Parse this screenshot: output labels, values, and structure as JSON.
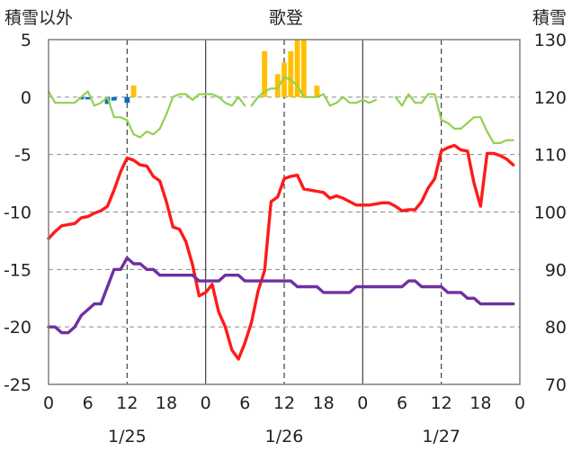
{
  "chart_data": {
    "type": "line",
    "title": "歌登",
    "y_left_label": "積雪以外",
    "y_right_label": "積雪",
    "y_left_ticks": [
      "5",
      "0",
      "-5",
      "-10",
      "-15",
      "-20",
      "-25"
    ],
    "y_right_ticks": [
      "130",
      "120",
      "110",
      "100",
      "90",
      "80",
      "70"
    ],
    "y_left_range": [
      -25,
      5
    ],
    "y_right_range": [
      70,
      130
    ],
    "x_hour_ticks": [
      "0",
      "6",
      "12",
      "18",
      "0",
      "6",
      "12",
      "18",
      "0",
      "6",
      "12",
      "18",
      "0"
    ],
    "x_date_labels": [
      "1/25",
      "1/26",
      "1/27"
    ],
    "x_range_hours": [
      0,
      72
    ],
    "grid": true,
    "colors": {
      "red": "#ff1a1a",
      "purple": "#7030a0",
      "green": "#92d050",
      "yellow": "#ffc000",
      "blue": "#0070c0"
    },
    "series": [
      {
        "color": "red",
        "axis": "left",
        "x": [
          0,
          1,
          2,
          3,
          4,
          5,
          6,
          7,
          8,
          9,
          10,
          11,
          12,
          13,
          14,
          15,
          16,
          17,
          18,
          19,
          20,
          21,
          22,
          23,
          24,
          25,
          26,
          27,
          28,
          29,
          30,
          31,
          32,
          33,
          34,
          35,
          36,
          37,
          38,
          39,
          40,
          41,
          42,
          43,
          44,
          45,
          46,
          47,
          48,
          49,
          50,
          51,
          52,
          53,
          54,
          55,
          56,
          57,
          58,
          59,
          60,
          61,
          62,
          63,
          64,
          65,
          66,
          67,
          68,
          69,
          70,
          71
        ],
        "values": [
          -12.3,
          -11.7,
          -11.2,
          -11.1,
          -11.0,
          -10.5,
          -10.4,
          -10.1,
          -9.9,
          -9.5,
          -8.1,
          -6.5,
          -5.3,
          -5.5,
          -5.9,
          -6.0,
          -6.9,
          -7.3,
          -9.1,
          -11.3,
          -11.5,
          -12.6,
          -14.6,
          -17.3,
          -17.0,
          -16.3,
          -18.7,
          -20.0,
          -22.0,
          -22.8,
          -21.4,
          -19.6,
          -16.9,
          -15.1,
          -9.1,
          -8.7,
          -7.1,
          -6.9,
          -6.8,
          -8.0,
          -8.1,
          -8.2,
          -8.3,
          -8.8,
          -8.6,
          -8.8,
          -9.1,
          -9.4,
          -9.4,
          -9.4,
          -9.3,
          -9.2,
          -9.2,
          -9.5,
          -9.9,
          -9.8,
          -9.8,
          -9.1,
          -7.9,
          -7.1,
          -4.7,
          -4.4,
          -4.2,
          -4.6,
          -4.7,
          -7.5,
          -9.5,
          -4.9,
          -4.9,
          -5.1,
          -5.4,
          -5.9
        ]
      },
      {
        "color": "purple",
        "axis": "left",
        "x": [
          0,
          1,
          2,
          3,
          4,
          5,
          6,
          7,
          8,
          9,
          10,
          11,
          12,
          13,
          14,
          15,
          16,
          17,
          18,
          19,
          20,
          21,
          22,
          23,
          24,
          25,
          26,
          27,
          28,
          29,
          30,
          31,
          32,
          33,
          34,
          35,
          36,
          37,
          38,
          39,
          40,
          41,
          42,
          43,
          44,
          45,
          46,
          47,
          48,
          49,
          50,
          51,
          52,
          53,
          54,
          55,
          56,
          57,
          58,
          59,
          60,
          61,
          62,
          63,
          64,
          65,
          66,
          67,
          68,
          69,
          70,
          71
        ],
        "values": [
          -20.0,
          -20.0,
          -20.5,
          -20.5,
          -20.0,
          -19.0,
          -18.5,
          -18.0,
          -18.0,
          -16.5,
          -15.0,
          -15.0,
          -14.0,
          -14.5,
          -14.5,
          -15.0,
          -15.0,
          -15.5,
          -15.5,
          -15.5,
          -15.5,
          -15.5,
          -15.5,
          -16.0,
          -16.0,
          -16.0,
          -16.0,
          -15.5,
          -15.5,
          -15.5,
          -16.0,
          -16.0,
          -16.0,
          -16.0,
          -16.0,
          -16.0,
          -16.0,
          -16.0,
          -16.5,
          -16.5,
          -16.5,
          -16.5,
          -17.0,
          -17.0,
          -17.0,
          -17.0,
          -17.0,
          -16.5,
          -16.5,
          -16.5,
          -16.5,
          -16.5,
          -16.5,
          -16.5,
          -16.5,
          -16.0,
          -16.0,
          -16.5,
          -16.5,
          -16.5,
          -16.5,
          -17.0,
          -17.0,
          -17.0,
          -17.5,
          -17.5,
          -18.0,
          -18.0,
          -18.0,
          -18.0,
          -18.0,
          -18.0
        ]
      },
      {
        "color": "green",
        "axis": "right",
        "segments": [
          {
            "x": [
              0,
              1,
              2,
              3,
              4,
              5,
              6,
              7,
              8,
              9,
              10,
              11,
              12,
              13,
              14,
              15,
              16,
              17,
              18,
              19,
              20,
              21,
              22,
              23,
              24,
              25,
              26,
              27,
              28,
              29,
              30
            ],
            "values": [
              121.0,
              119.0,
              119.0,
              119.0,
              119.0,
              120.0,
              121.0,
              118.5,
              119.0,
              120.0,
              116.5,
              116.5,
              116.0,
              113.5,
              113.0,
              114.0,
              113.5,
              114.5,
              117.0,
              120.0,
              120.5,
              120.5,
              119.5,
              120.5,
              120.5,
              120.5,
              120.0,
              119.0,
              118.5,
              120.0,
              118.5
            ]
          },
          {
            "x": [
              31,
              32,
              33,
              34,
              35,
              36,
              37,
              38,
              39,
              40,
              41,
              42,
              43,
              44,
              45,
              46,
              47,
              48,
              49,
              50
            ],
            "values": [
              118.5,
              120.0,
              121.0,
              121.5,
              121.5,
              123.5,
              123.0,
              122.0,
              120.0,
              120.0,
              120.0,
              120.5,
              118.5,
              119.0,
              120.0,
              119.0,
              119.0,
              119.5,
              119.0,
              119.5
            ]
          },
          {
            "x": [
              53,
              54,
              55,
              56,
              57,
              58,
              59,
              60,
              61,
              62,
              63,
              64,
              65,
              66,
              67,
              68,
              69,
              70,
              71
            ],
            "values": [
              120.0,
              118.5,
              120.5,
              119.0,
              119.0,
              120.5,
              120.5,
              116.0,
              115.5,
              114.5,
              114.5,
              115.5,
              116.5,
              116.5,
              114.0,
              112.0,
              112.0,
              112.5,
              112.5
            ]
          }
        ]
      }
    ],
    "bars": [
      {
        "color": "blue",
        "axis": "left",
        "x": [
          5,
          6,
          9,
          10,
          12
        ],
        "values": [
          -0.2,
          -0.2,
          -0.6,
          -0.3,
          -0.5
        ]
      },
      {
        "color": "yellow",
        "axis": "left",
        "x": [
          13,
          33,
          35,
          36,
          37,
          38,
          39,
          41
        ],
        "values": [
          1.0,
          4.0,
          2.0,
          3.0,
          4.0,
          5.0,
          5.0,
          1.0
        ]
      }
    ]
  }
}
